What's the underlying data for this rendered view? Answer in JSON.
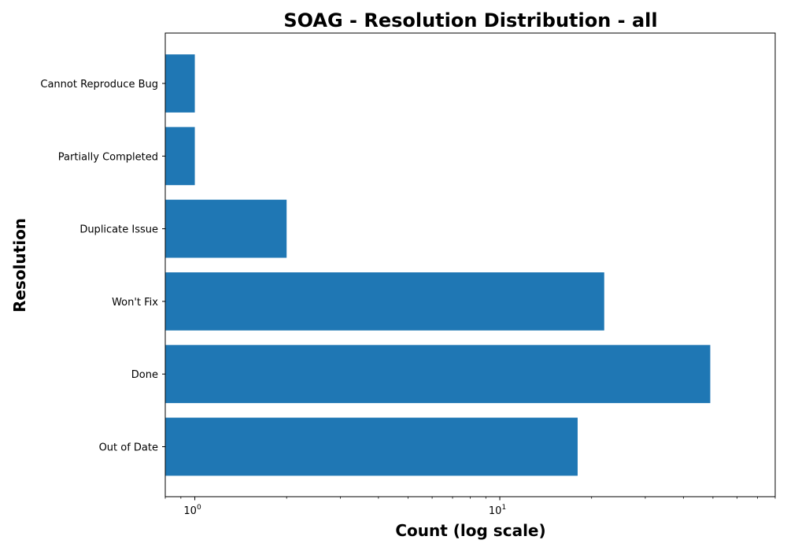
{
  "chart_data": {
    "type": "bar",
    "orientation": "horizontal",
    "title": "SOAG - Resolution Distribution - all",
    "xlabel": "Count (log scale)",
    "ylabel": "Resolution",
    "xscale": "log",
    "xlim": [
      0.8,
      80
    ],
    "grid": false,
    "color": "#1f77b4",
    "categories": [
      "Cannot Reproduce Bug",
      "Partially Completed",
      "Duplicate Issue",
      "Won't Fix",
      "Done",
      "Out of Date"
    ],
    "values": [
      1,
      1,
      2,
      22,
      49,
      18
    ],
    "x_major_ticks": [
      {
        "base": "10",
        "exponent": "0",
        "value": 1
      },
      {
        "base": "10",
        "exponent": "1",
        "value": 10
      }
    ]
  }
}
